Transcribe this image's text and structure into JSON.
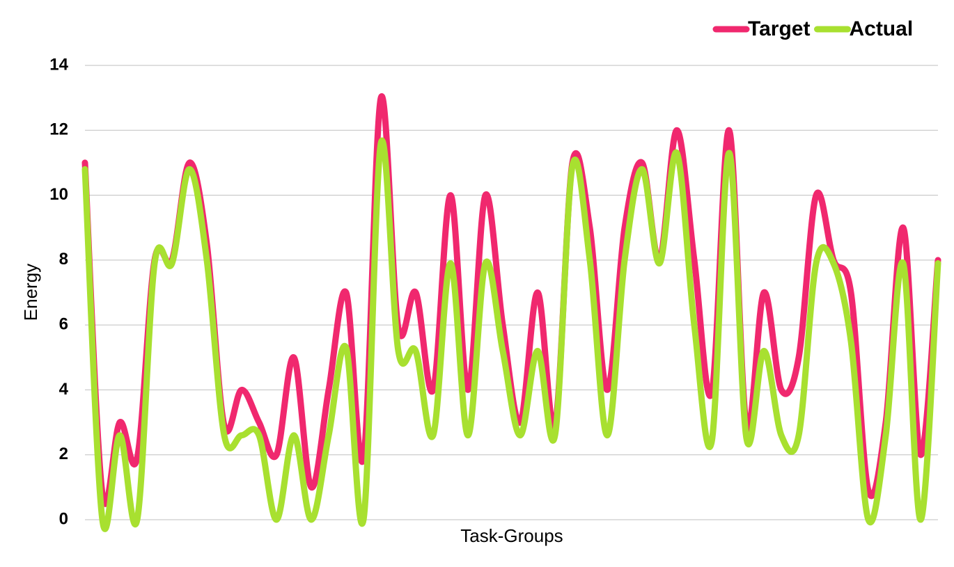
{
  "chart_data": {
    "type": "line",
    "x_label": "Task-Groups",
    "y_label": "Energy",
    "categories": [
      null,
      null,
      null,
      null,
      null,
      null,
      null,
      null,
      null,
      null,
      null,
      null,
      null,
      null,
      null,
      null,
      null,
      null,
      null,
      null,
      null,
      null,
      null,
      null,
      null,
      null,
      null,
      null,
      null,
      null,
      null,
      null,
      null,
      null,
      null,
      null,
      null,
      null,
      null,
      null,
      null,
      null,
      null,
      null,
      null,
      null,
      null,
      null,
      null,
      null
    ],
    "series": [
      {
        "name": "Target",
        "color": "#f0286e",
        "values": [
          11,
          0.8,
          3,
          1.9,
          8,
          8,
          11,
          8.5,
          2.9,
          4,
          3,
          2,
          5,
          1,
          4,
          7,
          1.9,
          13,
          5.9,
          7,
          4,
          10,
          4,
          10,
          6,
          3,
          7,
          2.9,
          11,
          9,
          4,
          9,
          11,
          8,
          12,
          8,
          3.9,
          12,
          2.9,
          7,
          4,
          5,
          10,
          8,
          7,
          0.9,
          3,
          9,
          2,
          8
        ]
      },
      {
        "name": "Actual",
        "color": "#a8e030",
        "values": [
          10.8,
          0,
          2.6,
          0,
          7.9,
          7.9,
          10.8,
          8,
          2.6,
          2.6,
          2.6,
          0,
          2.6,
          0,
          2.6,
          5.3,
          0,
          11.6,
          5.2,
          5.2,
          2.6,
          7.9,
          2.6,
          7.9,
          5.2,
          2.6,
          5.2,
          2.6,
          10.9,
          8,
          2.6,
          8,
          10.8,
          7.9,
          11.3,
          6,
          2.4,
          11.3,
          2.5,
          5.2,
          2.6,
          2.6,
          7.9,
          7.9,
          5.5,
          0,
          2.6,
          7.9,
          0,
          7.9
        ]
      }
    ],
    "ylim": [
      0,
      14
    ],
    "yticks": [
      0,
      2,
      4,
      6,
      8,
      10,
      12,
      14
    ],
    "grid": true,
    "legend": "top-right"
  }
}
